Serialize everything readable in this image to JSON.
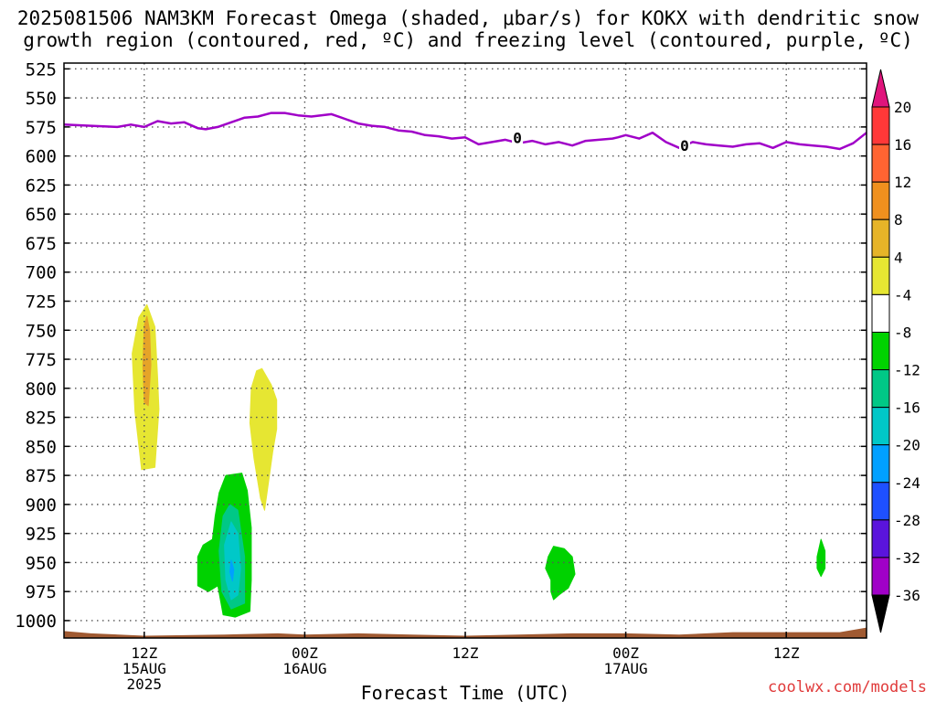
{
  "title_line1": "2025081506 NAM3KM Forecast Omega (shaded, μbar/s) for KOKX with dendritic snow",
  "title_line2": "growth region (contoured, red, ºC) and freezing level (contoured, purple, ºC)",
  "watermark": "coolwx.com/models",
  "chart_data": {
    "type": "contour",
    "xlabel": "Forecast Time (UTC)",
    "ylabel": "",
    "y_axis": {
      "unit": "mb",
      "range": [
        1015,
        520
      ],
      "ticks": [
        525,
        550,
        575,
        600,
        625,
        650,
        675,
        700,
        725,
        750,
        775,
        800,
        825,
        850,
        875,
        900,
        925,
        950,
        975,
        1000
      ]
    },
    "x_axis": {
      "range_hours": [
        6,
        66
      ],
      "ticks": [
        {
          "hour": 12,
          "lines": [
            "12Z",
            "15AUG",
            "2025"
          ]
        },
        {
          "hour": 24,
          "lines": [
            "00Z",
            "16AUG"
          ]
        },
        {
          "hour": 36,
          "lines": [
            "12Z"
          ]
        },
        {
          "hour": 48,
          "lines": [
            "00Z",
            "17AUG"
          ]
        },
        {
          "hour": 60,
          "lines": [
            "12Z"
          ]
        }
      ]
    },
    "grid": true,
    "freezing_level": {
      "label": "0",
      "color": "#a000c8",
      "label_points": [
        [
          39.9,
          584
        ],
        [
          52.4,
          591
        ]
      ],
      "points": [
        [
          6,
          573
        ],
        [
          8,
          574
        ],
        [
          10,
          575
        ],
        [
          11,
          573
        ],
        [
          12,
          575
        ],
        [
          13,
          570
        ],
        [
          14,
          572
        ],
        [
          15,
          571
        ],
        [
          16,
          576
        ],
        [
          16.6,
          577
        ],
        [
          17.5,
          575
        ],
        [
          18.5,
          571
        ],
        [
          19.5,
          567
        ],
        [
          20.5,
          566
        ],
        [
          21.5,
          563
        ],
        [
          22.5,
          563
        ],
        [
          23.5,
          565
        ],
        [
          24.5,
          566
        ],
        [
          26,
          564
        ],
        [
          27,
          568
        ],
        [
          28,
          572
        ],
        [
          29,
          574
        ],
        [
          30,
          575
        ],
        [
          31,
          578
        ],
        [
          32,
          579
        ],
        [
          33,
          582
        ],
        [
          34,
          583
        ],
        [
          35,
          585
        ],
        [
          36,
          584
        ],
        [
          37,
          590
        ],
        [
          38,
          588
        ],
        [
          39,
          586
        ],
        [
          40,
          589
        ],
        [
          41,
          587
        ],
        [
          42,
          590
        ],
        [
          43,
          588
        ],
        [
          44,
          591
        ],
        [
          45,
          587
        ],
        [
          46,
          586
        ],
        [
          47,
          585
        ],
        [
          47.4,
          584
        ],
        [
          48,
          582
        ],
        [
          49,
          585
        ],
        [
          50,
          580
        ],
        [
          51,
          588
        ],
        [
          52,
          593
        ],
        [
          53,
          588
        ],
        [
          54,
          590
        ],
        [
          55,
          591
        ],
        [
          56,
          592
        ],
        [
          57,
          590
        ],
        [
          58,
          589
        ],
        [
          59,
          593
        ],
        [
          60,
          588
        ],
        [
          61,
          590
        ],
        [
          62,
          591
        ],
        [
          63,
          592
        ],
        [
          64,
          594
        ],
        [
          65,
          589
        ],
        [
          66,
          580
        ]
      ]
    },
    "omega_colorbar": {
      "labels": [
        "20",
        "16",
        "12",
        "8",
        "4",
        "-4",
        "-8",
        "-12",
        "-16",
        "-20",
        "-24",
        "-28",
        "-32",
        "-36"
      ],
      "top_triangle_color": "#e0147c",
      "bottom_triangle_color": "#000000",
      "colors": [
        "#ff3838",
        "#ff6432",
        "#f0901e",
        "#e6b428",
        "#e6e632",
        "#ffffff",
        "#00d200",
        "#00c886",
        "#00c8c8",
        "#00a0ff",
        "#1e50ff",
        "#5a14dc",
        "#a000c8",
        "#aaaaaa"
      ]
    },
    "omega_regions": [
      {
        "value": 6,
        "color": "#e6e632",
        "points": [
          [
            11.6,
            739
          ],
          [
            12.2,
            728
          ],
          [
            12.8,
            747
          ],
          [
            13.0,
            790
          ],
          [
            13.1,
            818
          ],
          [
            12.8,
            868
          ],
          [
            11.8,
            870
          ],
          [
            11.3,
            820
          ],
          [
            11.1,
            770
          ]
        ]
      },
      {
        "value": 10,
        "color": "#e6a428",
        "points": [
          [
            12.0,
            746
          ],
          [
            12.2,
            738
          ],
          [
            12.4,
            750
          ],
          [
            12.5,
            780
          ],
          [
            12.3,
            815
          ],
          [
            12.0,
            812
          ],
          [
            11.9,
            780
          ]
        ]
      },
      {
        "value": 6,
        "color": "#e6e632",
        "points": [
          [
            20.8,
            783
          ],
          [
            21.5,
            797
          ],
          [
            21.9,
            810
          ],
          [
            21.9,
            835
          ],
          [
            21.6,
            855
          ],
          [
            21.3,
            880
          ],
          [
            21.0,
            905
          ],
          [
            20.7,
            895
          ],
          [
            20.2,
            860
          ],
          [
            19.9,
            830
          ],
          [
            20.0,
            800
          ],
          [
            20.4,
            785
          ]
        ]
      },
      {
        "value": -6,
        "color": "#00d200",
        "points": [
          [
            18.1,
            875
          ],
          [
            19.3,
            873
          ],
          [
            19.7,
            888
          ],
          [
            20.0,
            920
          ],
          [
            20.0,
            965
          ],
          [
            19.9,
            992
          ],
          [
            18.8,
            997
          ],
          [
            17.9,
            995
          ],
          [
            17.5,
            970
          ],
          [
            16.8,
            975
          ],
          [
            16.0,
            970
          ],
          [
            16.0,
            945
          ],
          [
            16.4,
            935
          ],
          [
            17.1,
            930
          ],
          [
            17.3,
            910
          ],
          [
            17.6,
            890
          ]
        ]
      },
      {
        "value": -10,
        "color": "#00c886",
        "points": [
          [
            18.4,
            900
          ],
          [
            19.0,
            905
          ],
          [
            19.5,
            945
          ],
          [
            19.5,
            985
          ],
          [
            18.5,
            990
          ],
          [
            17.8,
            975
          ],
          [
            17.6,
            940
          ],
          [
            17.9,
            910
          ]
        ]
      },
      {
        "value": -14,
        "color": "#00c8c8",
        "points": [
          [
            18.5,
            915
          ],
          [
            19.0,
            925
          ],
          [
            19.2,
            955
          ],
          [
            19.0,
            978
          ],
          [
            18.5,
            982
          ],
          [
            18.1,
            965
          ],
          [
            18.0,
            935
          ]
        ]
      },
      {
        "value": -18,
        "color": "#00a0ff",
        "points": [
          [
            18.5,
            948
          ],
          [
            18.7,
            956
          ],
          [
            18.6,
            966
          ],
          [
            18.4,
            958
          ]
        ]
      },
      {
        "value": -6,
        "color": "#00d200",
        "points": [
          [
            42.6,
            936
          ],
          [
            43.4,
            938
          ],
          [
            44.0,
            945
          ],
          [
            44.2,
            960
          ],
          [
            43.7,
            972
          ],
          [
            43.0,
            978
          ],
          [
            42.6,
            982
          ],
          [
            42.4,
            975
          ],
          [
            42.4,
            965
          ],
          [
            42.0,
            955
          ],
          [
            42.2,
            945
          ]
        ]
      },
      {
        "value": -6,
        "color": "#00d200",
        "points": [
          [
            62.6,
            930
          ],
          [
            62.9,
            940
          ],
          [
            62.9,
            955
          ],
          [
            62.6,
            962
          ],
          [
            62.3,
            955
          ],
          [
            62.3,
            945
          ]
        ]
      }
    ],
    "ground_surface": {
      "color": "#a05a32",
      "points": [
        [
          6,
          1009
        ],
        [
          8,
          1011
        ],
        [
          12,
          1013
        ],
        [
          18,
          1012
        ],
        [
          22,
          1011
        ],
        [
          24,
          1012
        ],
        [
          28,
          1011
        ],
        [
          32,
          1012
        ],
        [
          36,
          1013
        ],
        [
          40,
          1012
        ],
        [
          44,
          1011
        ],
        [
          48,
          1011
        ],
        [
          52,
          1012
        ],
        [
          56,
          1010
        ],
        [
          60,
          1010
        ],
        [
          64,
          1010
        ],
        [
          66,
          1006
        ]
      ]
    }
  }
}
